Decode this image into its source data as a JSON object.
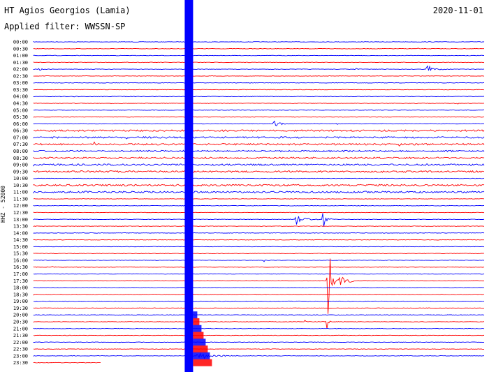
{
  "header": {
    "station": "HT Agios Georgios (Lamia)",
    "filter": "Applied filter: WWSSN-SP",
    "date": "2020-11-01"
  },
  "channel": "HHZ - 52000",
  "colors": {
    "blue": "#0000ff",
    "red": "#ff0000"
  },
  "chart_data": {
    "type": "line",
    "title": "HT Agios Georgios (Lamia)",
    "row_labels": [
      "00:00",
      "00:30",
      "01:00",
      "01:30",
      "02:00",
      "02:30",
      "03:00",
      "03:30",
      "04:00",
      "04:30",
      "05:00",
      "05:30",
      "06:00",
      "06:30",
      "07:00",
      "07:30",
      "08:00",
      "08:30",
      "09:00",
      "09:30",
      "10:00",
      "10:30",
      "11:00",
      "11:30",
      "12:00",
      "12:30",
      "13:00",
      "13:30",
      "14:00",
      "14:30",
      "15:00",
      "15:30",
      "16:00",
      "16:30",
      "17:00",
      "17:30",
      "18:00",
      "18:30",
      "19:00",
      "19:30",
      "20:00",
      "20:30",
      "21:00",
      "21:30",
      "22:00",
      "22:30",
      "23:00",
      "23:30"
    ],
    "row_colors": "alternating blue / red",
    "noisy_rows": [
      "06:30",
      "07:00",
      "07:30",
      "08:00",
      "08:30",
      "09:00",
      "09:30",
      "10:30",
      "11:00"
    ],
    "last_row_partial": 0.15,
    "events": [
      {
        "row": "00:30",
        "start": 0.85,
        "duration": 0.02,
        "amp": 0.3
      },
      {
        "row": "02:00",
        "start": 0.01,
        "duration": 0.05,
        "amp": 0.6
      },
      {
        "row": "02:00",
        "start": 0.71,
        "duration": 0.06,
        "amp": 0.4
      },
      {
        "row": "02:00",
        "start": 0.87,
        "duration": 0.07,
        "amp": 1.8
      },
      {
        "row": "04:00",
        "start": 0.09,
        "duration": 0.02,
        "amp": 0.5
      },
      {
        "row": "04:00",
        "start": 0.67,
        "duration": 0.03,
        "amp": 0.5
      },
      {
        "row": "04:30",
        "start": 0.17,
        "duration": 0.02,
        "amp": 0.4
      },
      {
        "row": "04:30",
        "start": 0.94,
        "duration": 0.02,
        "amp": 0.4
      },
      {
        "row": "06:00",
        "start": 0.53,
        "duration": 0.03,
        "amp": 5
      },
      {
        "row": "06:00",
        "start": 0.67,
        "duration": 0.06,
        "amp": 0.4
      },
      {
        "row": "07:00",
        "start": 0.2,
        "duration": 0.05,
        "amp": 1
      },
      {
        "row": "07:30",
        "start": 0.13,
        "duration": 0.07,
        "amp": 0.8
      },
      {
        "row": "07:30",
        "start": 0.81,
        "duration": 0.01,
        "amp": 2
      },
      {
        "row": "08:30",
        "start": 0.08,
        "duration": 0.01,
        "amp": 0.4
      },
      {
        "row": "09:00",
        "start": 0,
        "duration": 0.03,
        "amp": 0.8
      },
      {
        "row": "11:00",
        "start": 0.49,
        "duration": 0.05,
        "amp": 0.5
      },
      {
        "row": "13:00",
        "start": 0.58,
        "duration": 0.07,
        "amp": 2.2
      },
      {
        "row": "13:00",
        "start": 0.64,
        "duration": 0.03,
        "amp": 3.5
      },
      {
        "row": "16:00",
        "start": 0.27,
        "duration": 0.01,
        "amp": 0.6
      },
      {
        "row": "16:00",
        "start": 0.51,
        "duration": 0.02,
        "amp": 0.6
      },
      {
        "row": "16:30",
        "start": 0.04,
        "duration": 0.03,
        "amp": 0.3
      },
      {
        "row": "17:30",
        "start": 0.65,
        "duration": 0.06,
        "amp": 14
      },
      {
        "row": "18:30",
        "start": 0,
        "duration": 0.02,
        "amp": 0.5
      },
      {
        "row": "20:30",
        "start": 0.49,
        "duration": 0.03,
        "amp": 0.5
      },
      {
        "row": "20:30",
        "start": 0.6,
        "duration": 0.02,
        "amp": 0.6
      },
      {
        "row": "20:30",
        "start": 0.65,
        "duration": 0.01,
        "amp": 4
      },
      {
        "row": "22:00",
        "start": 0.65,
        "duration": 0.02,
        "amp": 0.3
      },
      {
        "row": "23:00",
        "start": 0.36,
        "duration": 0.17,
        "amp": 1.2
      }
    ],
    "saturated_band": {
      "start": 0.335,
      "rows": [
        "00:00",
        "23:30"
      ]
    }
  }
}
